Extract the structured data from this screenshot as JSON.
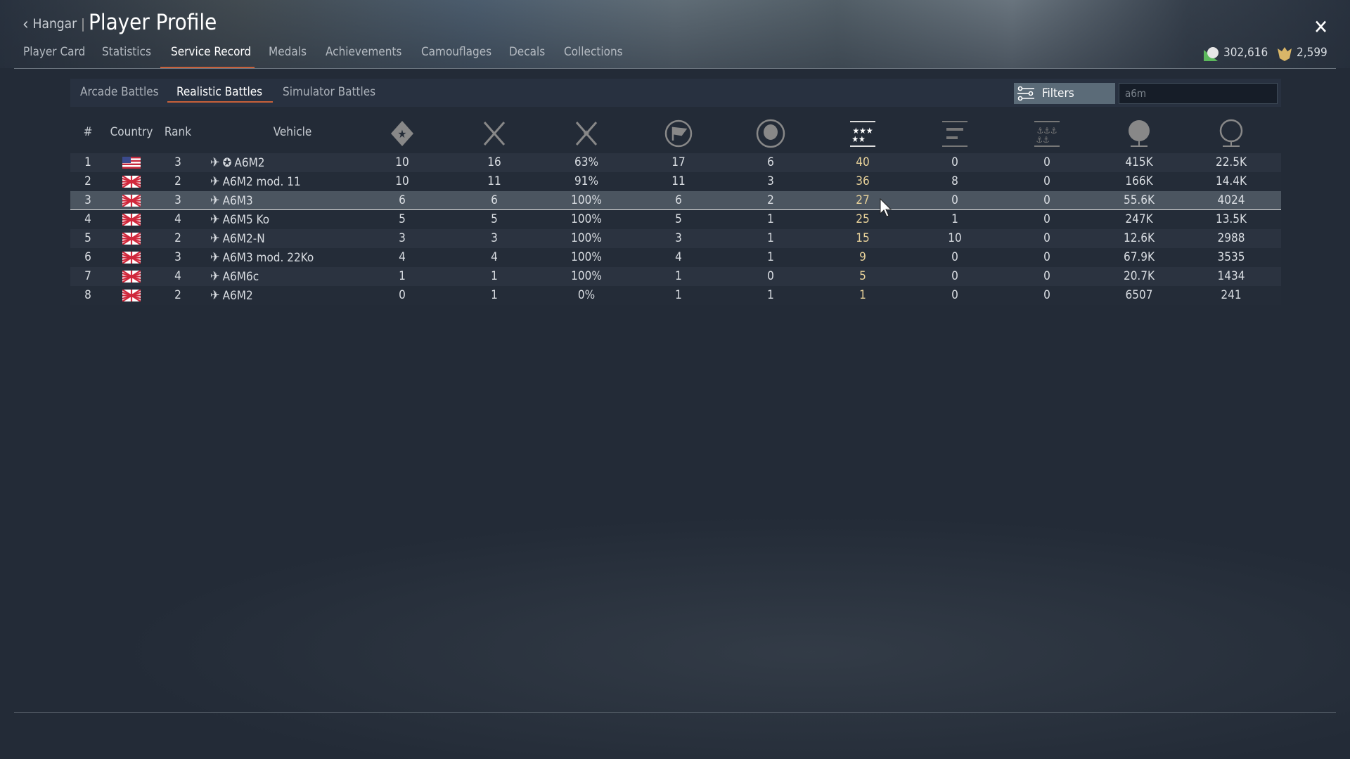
{
  "header": {
    "back_label": "Hangar",
    "title": "Player Profile",
    "close_icon": "close-icon"
  },
  "tabs": [
    {
      "label": "Player Card"
    },
    {
      "label": "Statistics"
    },
    {
      "label": "Service Record",
      "active": true
    },
    {
      "label": "Medals"
    },
    {
      "label": "Achievements"
    },
    {
      "label": "Camouflages"
    },
    {
      "label": "Decals"
    },
    {
      "label": "Collections"
    }
  ],
  "currency": {
    "silver_lions": "302,616",
    "golden_eagles": "2,599"
  },
  "mode_tabs": [
    {
      "label": "Arcade Battles"
    },
    {
      "label": "Realistic Battles",
      "active": true
    },
    {
      "label": "Simulator Battles"
    }
  ],
  "filters": {
    "label": "Filters",
    "search_value": "a6m"
  },
  "columns": {
    "num": "#",
    "country": "Country",
    "rank": "Rank",
    "vehicle": "Vehicle",
    "icons": [
      "victories-icon",
      "respawns-icon",
      "win-rate-icon",
      "missions-icon",
      "deaths-icon",
      "air-targets-icon",
      "ground-targets-icon",
      "naval-targets-icon",
      "silver-lions-earned-icon",
      "research-points-icon"
    ]
  },
  "accent_color": "#c8603a",
  "highlight_value_color": "#e8d29a",
  "rows": [
    {
      "num": "1",
      "country": "usa",
      "rank": "3",
      "vehicle": "A6M2",
      "captured": true,
      "v": [
        "10",
        "16",
        "63%",
        "17",
        "6",
        "40",
        "0",
        "0",
        "415K",
        "22.5K"
      ]
    },
    {
      "num": "2",
      "country": "japan",
      "rank": "2",
      "vehicle": "A6M2 mod. 11",
      "v": [
        "10",
        "11",
        "91%",
        "11",
        "3",
        "36",
        "8",
        "0",
        "166K",
        "14.4K"
      ]
    },
    {
      "num": "3",
      "country": "japan",
      "rank": "3",
      "vehicle": "A6M3",
      "selected": true,
      "v": [
        "6",
        "6",
        "100%",
        "6",
        "2",
        "27",
        "0",
        "0",
        "55.6K",
        "4024"
      ]
    },
    {
      "num": "4",
      "country": "japan",
      "rank": "4",
      "vehicle": "A6M5 Ko",
      "v": [
        "5",
        "5",
        "100%",
        "5",
        "1",
        "25",
        "1",
        "0",
        "247K",
        "13.5K"
      ]
    },
    {
      "num": "5",
      "country": "japan",
      "rank": "2",
      "vehicle": "A6M2-N",
      "v": [
        "3",
        "3",
        "100%",
        "3",
        "1",
        "15",
        "10",
        "0",
        "12.6K",
        "2988"
      ]
    },
    {
      "num": "6",
      "country": "japan",
      "rank": "3",
      "vehicle": "A6M3 mod. 22Ko",
      "v": [
        "4",
        "4",
        "100%",
        "4",
        "1",
        "9",
        "0",
        "0",
        "67.9K",
        "3535"
      ]
    },
    {
      "num": "7",
      "country": "japan",
      "rank": "4",
      "vehicle": "A6M6c",
      "v": [
        "1",
        "1",
        "100%",
        "1",
        "0",
        "5",
        "0",
        "0",
        "20.7K",
        "1434"
      ]
    },
    {
      "num": "8",
      "country": "japan",
      "rank": "2",
      "vehicle": "A6M2",
      "v": [
        "0",
        "1",
        "0%",
        "1",
        "1",
        "1",
        "0",
        "0",
        "6507",
        "241"
      ]
    }
  ]
}
